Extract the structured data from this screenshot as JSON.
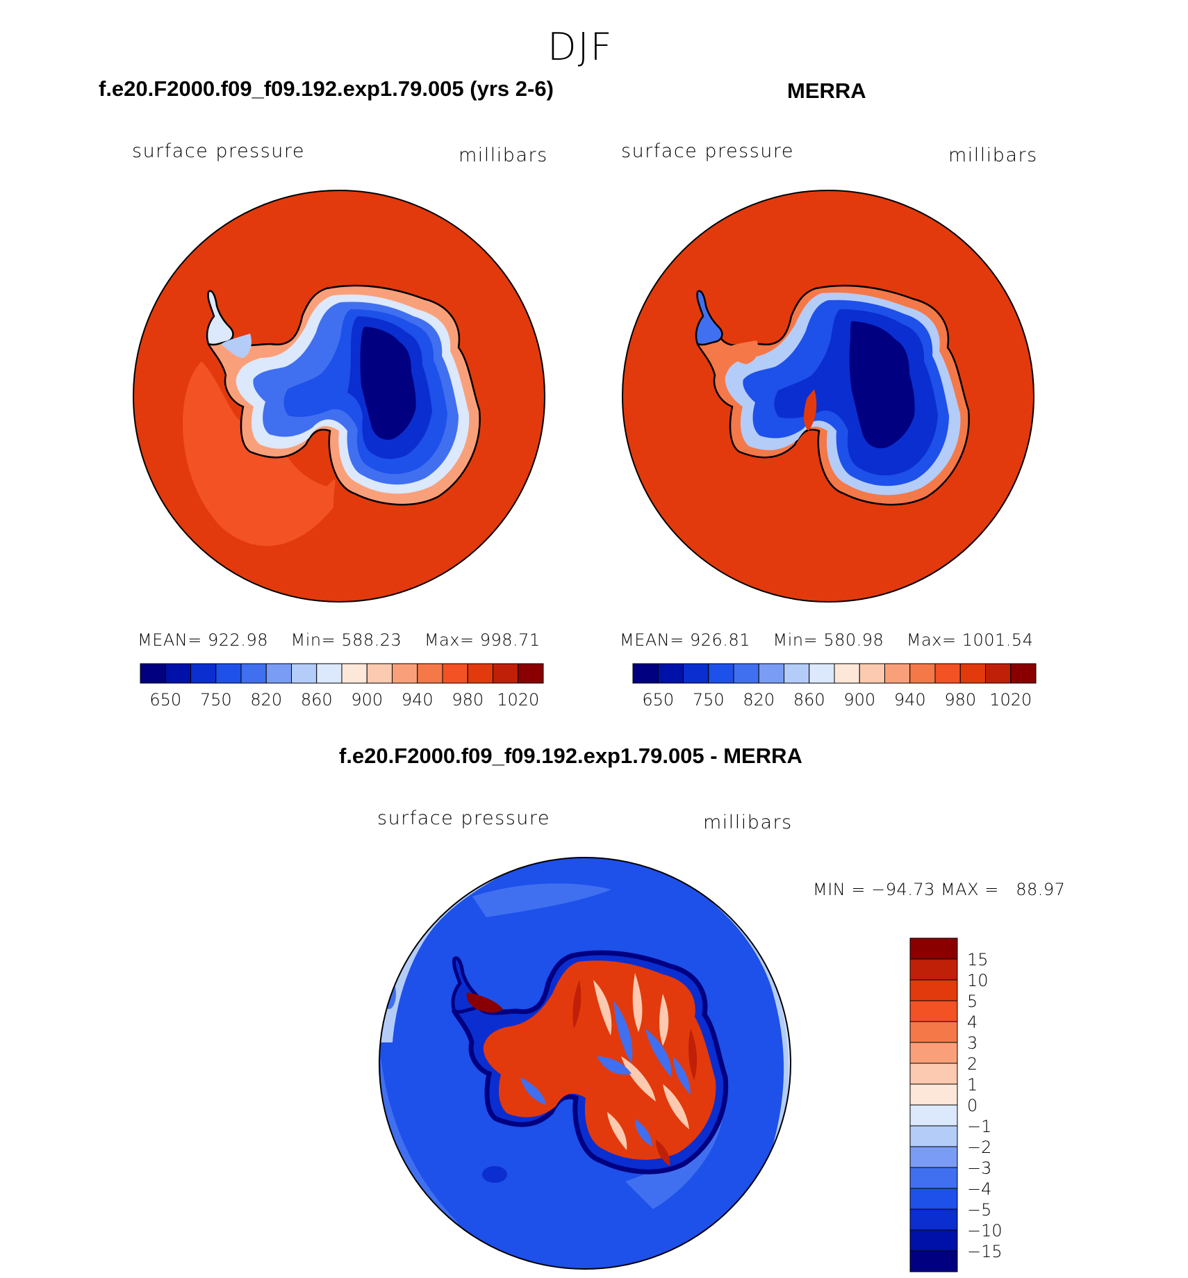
{
  "figure": {
    "season": "DJF",
    "colors": {
      "scale_abs": [
        "#000080",
        "#0011aa",
        "#0a2ed0",
        "#1e50ea",
        "#4070f0",
        "#7a9cf4",
        "#b4ccf8",
        "#dce8fc",
        "#fde7d9",
        "#fccab0",
        "#f9a07a",
        "#f57848",
        "#f25224",
        "#e23a0c",
        "#c02008",
        "#8a0000"
      ],
      "scale_diff": [
        "#000080",
        "#0011aa",
        "#0a2ed0",
        "#1e50ea",
        "#4070f0",
        "#7a9cf4",
        "#b4ccf8",
        "#dce8fc",
        "#fde7d9",
        "#fccab0",
        "#f9a07a",
        "#f57848",
        "#f25224",
        "#e23a0c",
        "#c02008",
        "#8a0000"
      ]
    }
  },
  "chart_data": [
    {
      "type": "heatmap",
      "projection": "south-polar-stereographic",
      "title": "f.e20.F2000.f09_f09.192.exp1.79.005 (yrs 2-6)",
      "variable": "surface pressure",
      "units": "millibars",
      "stats": {
        "mean_label": "MEAN=",
        "mean": "922.98",
        "min_label": "Min=",
        "min": "588.23",
        "max_label": "Max=",
        "max": "998.71"
      },
      "colorbar": {
        "levels": [
          600,
          650,
          700,
          750,
          800,
          820,
          840,
          860,
          880,
          900,
          920,
          940,
          960,
          980,
          1000,
          1020
        ],
        "tick_labels": [
          "650",
          "750",
          "820",
          "860",
          "900",
          "940",
          "980",
          "1020"
        ]
      }
    },
    {
      "type": "heatmap",
      "projection": "south-polar-stereographic",
      "title": "MERRA",
      "variable": "surface pressure",
      "units": "millibars",
      "stats": {
        "mean_label": "MEAN=",
        "mean": "926.81",
        "min_label": "Min=",
        "min": "580.98",
        "max_label": "Max=",
        "max": "1001.54"
      },
      "colorbar": {
        "levels": [
          600,
          650,
          700,
          750,
          800,
          820,
          840,
          860,
          880,
          900,
          920,
          940,
          960,
          980,
          1000,
          1020
        ],
        "tick_labels": [
          "650",
          "750",
          "820",
          "860",
          "900",
          "940",
          "980",
          "1020"
        ]
      }
    },
    {
      "type": "heatmap",
      "projection": "south-polar-stereographic",
      "title": "f.e20.F2000.f09_f09.192.exp1.79.005 - MERRA",
      "variable": "surface pressure",
      "units": "millibars",
      "stats": {
        "text": "MIN = −94.73 MAX =   88.97",
        "min": -94.73,
        "max": 88.97
      },
      "colorbar": {
        "levels": [
          -15,
          -10,
          -5,
          -4,
          -3,
          -2,
          -1,
          0,
          1,
          2,
          3,
          4,
          5,
          10,
          15
        ],
        "tick_labels": [
          "15",
          "10",
          "5",
          "4",
          "3",
          "2",
          "1",
          "0",
          "−1",
          "−2",
          "−3",
          "−4",
          "−5",
          "−10",
          "−15"
        ]
      }
    }
  ]
}
